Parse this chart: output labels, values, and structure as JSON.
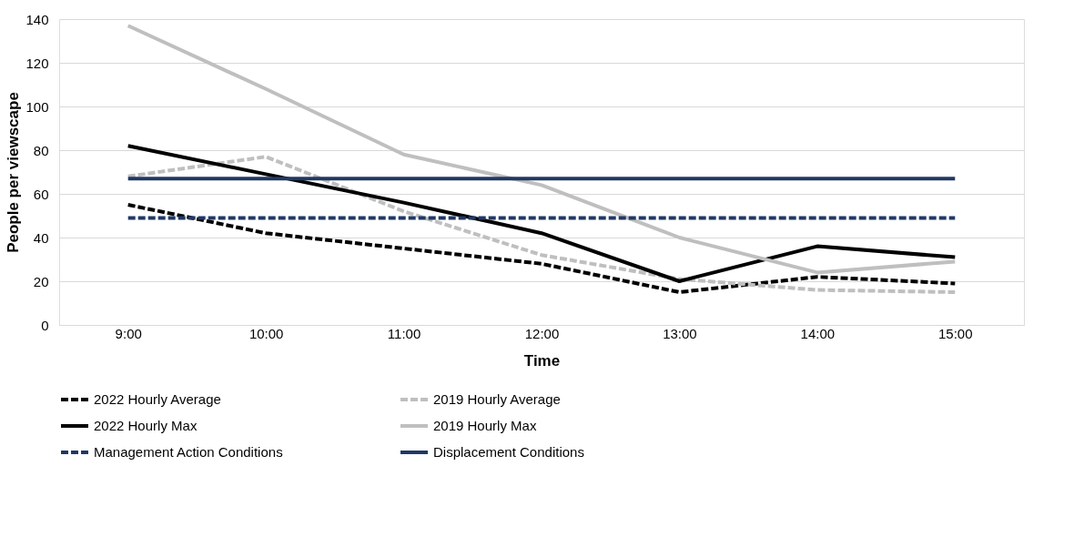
{
  "chart_data": {
    "type": "line",
    "xlabel": "Time",
    "ylabel": "People per viewscape",
    "categories": [
      "9:00",
      "10:00",
      "11:00",
      "12:00",
      "13:00",
      "14:00",
      "15:00"
    ],
    "series": [
      {
        "name": "2022 Hourly Average",
        "color": "#000000",
        "line_style": "dashed",
        "values": [
          55,
          42,
          35,
          28,
          15,
          22,
          19
        ]
      },
      {
        "name": "2019 Hourly Average",
        "color": "#bfbfbf",
        "line_style": "dashed",
        "values": [
          68,
          77,
          52,
          32,
          21,
          16,
          15
        ]
      },
      {
        "name": "2022 Hourly Max",
        "color": "#000000",
        "line_style": "solid",
        "values": [
          82,
          69,
          56,
          42,
          20,
          36,
          31
        ]
      },
      {
        "name": "2019 Hourly Max",
        "color": "#bfbfbf",
        "line_style": "solid",
        "values": [
          137,
          108,
          78,
          64,
          40,
          24,
          29
        ]
      },
      {
        "name": "Management Action Conditions",
        "color": "#203864",
        "line_style": "dashed",
        "values": [
          49,
          49,
          49,
          49,
          49,
          49,
          49
        ]
      },
      {
        "name": "Displacement Conditions",
        "color": "#203864",
        "line_style": "solid",
        "values": [
          67,
          67,
          67,
          67,
          67,
          67,
          67
        ]
      }
    ],
    "ylim": [
      0,
      140
    ],
    "yticks": [
      0,
      20,
      40,
      60,
      80,
      100,
      120,
      140
    ],
    "grid": "y",
    "legend": "bottom",
    "marker": "none"
  }
}
